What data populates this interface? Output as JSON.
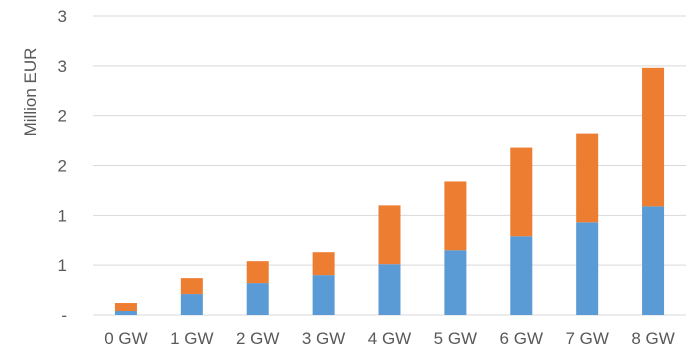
{
  "chart_data": {
    "type": "bar",
    "stacked": true,
    "title": "",
    "xlabel": "",
    "ylabel": "Million EUR",
    "categories": [
      "0 GW",
      "1 GW",
      "2 GW",
      "3 GW",
      "4 GW",
      "5 GW",
      "6 GW",
      "7 GW",
      "8 GW"
    ],
    "series": [
      {
        "color": "#5b9bd5",
        "values": [
          0.04,
          0.21,
          0.32,
          0.4,
          0.51,
          0.65,
          0.79,
          0.93,
          1.09
        ]
      },
      {
        "color": "#ed7d31",
        "values": [
          0.08,
          0.16,
          0.22,
          0.23,
          0.59,
          0.69,
          0.89,
          0.89,
          1.39
        ]
      }
    ],
    "ylim": [
      0,
      3
    ],
    "yticks": [
      0,
      0.5,
      1,
      1.5,
      2,
      2.5,
      3
    ],
    "ytick_labels": [
      "-",
      "1",
      "1",
      "2",
      "2",
      "3",
      "3"
    ],
    "grid": true,
    "legend": "none"
  }
}
